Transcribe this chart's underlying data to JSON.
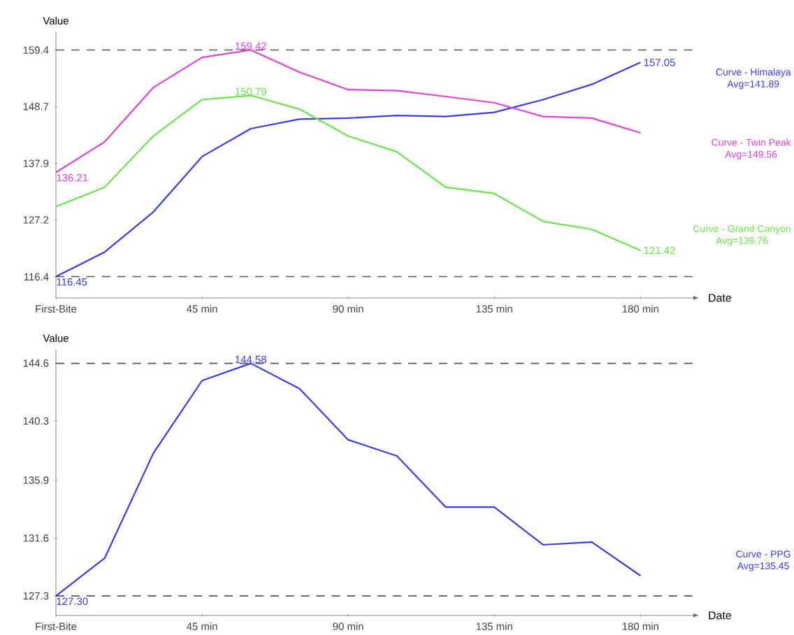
{
  "chart_data": [
    {
      "type": "line",
      "xlabel": "Date",
      "ylabel": "Value",
      "x": [
        0,
        15,
        30,
        45,
        60,
        75,
        90,
        105,
        120,
        135,
        150,
        165,
        180
      ],
      "xlim": [
        0,
        198
      ],
      "ylim": [
        112.4,
        162.8
      ],
      "xticks": [
        {
          "value": 0,
          "label": "First-Bite"
        },
        {
          "value": 45,
          "label": "45 min"
        },
        {
          "value": 90,
          "label": "90 min"
        },
        {
          "value": 135,
          "label": "135 min"
        },
        {
          "value": 180,
          "label": "180 min"
        }
      ],
      "yticks": [
        116.4,
        127.2,
        137.9,
        148.7,
        159.4
      ],
      "series": [
        {
          "name": "Curve - Himalaya",
          "color": "#3a3ae6",
          "values": [
            116.45,
            121.1,
            128.7,
            139.2,
            144.5,
            146.3,
            146.5,
            147.0,
            146.8,
            147.6,
            150.0,
            152.9,
            157.05
          ],
          "value_labels": [
            "116.45",
            null,
            null,
            null,
            null,
            null,
            null,
            null,
            null,
            null,
            null,
            null,
            "157.05"
          ]
        },
        {
          "name": "Curve - Twin Peak",
          "color": "#e040e0",
          "values": [
            136.21,
            142.0,
            152.3,
            158.0,
            159.42,
            155.2,
            151.9,
            151.7,
            150.6,
            149.4,
            146.8,
            146.5,
            143.7
          ],
          "value_labels": [
            "136.21",
            null,
            null,
            null,
            "159.42",
            null,
            null,
            null,
            null,
            null,
            null,
            null,
            null
          ]
        },
        {
          "name": "Curve - Grand Canyon",
          "color": "#66e64a",
          "values": [
            129.7,
            133.4,
            143.1,
            150.0,
            150.79,
            148.2,
            143.1,
            140.1,
            133.4,
            132.2,
            126.9,
            125.4,
            121.42
          ],
          "value_labels": [
            null,
            null,
            null,
            null,
            "150.79",
            null,
            null,
            null,
            null,
            null,
            null,
            null,
            "121.42"
          ]
        }
      ],
      "annotations": [
        "Avg=141.89",
        "Avg=149.56",
        "Avg=136.76"
      ],
      "ref_lines": [
        {
          "axis": "y",
          "value": 159.42,
          "color": "#555555",
          "line_style": "dashed"
        },
        {
          "axis": "y",
          "value": 116.45,
          "color": "#555555",
          "line_style": "dashed"
        }
      ],
      "grid": false,
      "marker": "none",
      "line_style": "solid"
    },
    {
      "type": "line",
      "xlabel": "Date",
      "ylabel": "Value",
      "x": [
        0,
        15,
        30,
        45,
        60,
        75,
        90,
        105,
        120,
        135,
        150,
        165,
        180
      ],
      "xlim": [
        0,
        198
      ],
      "ylim": [
        125.85,
        145.6
      ],
      "xticks": [
        {
          "value": 0,
          "label": "First-Bite"
        },
        {
          "value": 45,
          "label": "45 min"
        },
        {
          "value": 90,
          "label": "90 min"
        },
        {
          "value": 135,
          "label": "135 min"
        },
        {
          "value": 180,
          "label": "180 min"
        }
      ],
      "yticks": [
        127.3,
        131.6,
        135.9,
        140.3,
        144.6
      ],
      "series": [
        {
          "name": "Curve - PPG",
          "color": "#3a3ae6",
          "values": [
            127.3,
            130.1,
            137.9,
            143.3,
            144.58,
            142.7,
            138.9,
            137.7,
            133.9,
            133.9,
            131.1,
            131.3,
            128.8
          ],
          "value_labels": [
            "127.30",
            null,
            null,
            null,
            "144.58",
            null,
            null,
            null,
            null,
            null,
            null,
            null,
            null
          ]
        }
      ],
      "annotations": [
        "Avg=135.45"
      ],
      "ref_lines": [
        {
          "axis": "y",
          "value": 144.58,
          "color": "#555555",
          "line_style": "dashed"
        },
        {
          "axis": "y",
          "value": 127.3,
          "color": "#555555",
          "line_style": "dashed"
        }
      ],
      "grid": false,
      "marker": "none",
      "line_style": "solid"
    }
  ]
}
